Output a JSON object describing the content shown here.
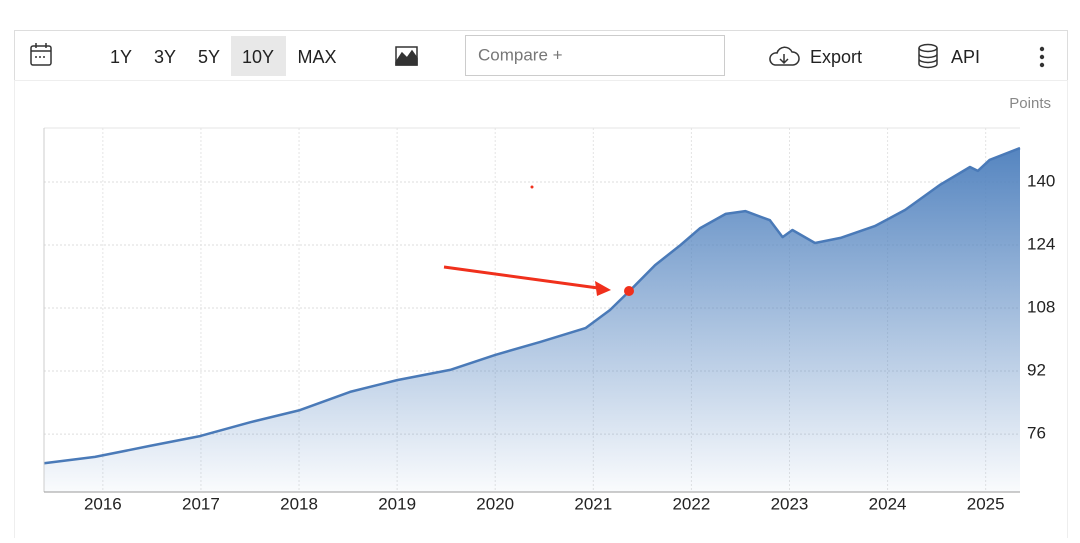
{
  "toolbar": {
    "ranges": [
      "1Y",
      "3Y",
      "5Y",
      "10Y",
      "MAX"
    ],
    "compare": "Compare +",
    "export": "Export",
    "api": "API"
  },
  "chart_data": {
    "type": "area",
    "unit": "Points",
    "color": "#4a7ab8",
    "x": [
      2015.4,
      2015.92,
      2016.48,
      2016.99,
      2017.5,
      2018.01,
      2018.52,
      2019.0,
      2019.54,
      2020.0,
      2020.46,
      2020.92,
      2021.17,
      2021.38,
      2021.63,
      2021.89,
      2022.09,
      2022.35,
      2022.55,
      2022.8,
      2022.93,
      2023.03,
      2023.26,
      2023.52,
      2023.87,
      2024.18,
      2024.53,
      2024.84,
      2024.92,
      2025.04,
      2025.35
    ],
    "values": [
      68.6,
      70.2,
      73.0,
      75.5,
      79.0,
      82.1,
      86.7,
      89.7,
      92.3,
      96.1,
      99.4,
      102.9,
      107.5,
      112.6,
      118.9,
      124.0,
      128.3,
      131.9,
      132.6,
      130.3,
      126.0,
      127.8,
      124.5,
      125.8,
      128.8,
      132.9,
      139.2,
      143.8,
      142.8,
      145.6,
      148.6
    ],
    "xlim": [
      2015.4,
      2025.35
    ],
    "xticks": [
      2016,
      2017,
      2018,
      2019,
      2020,
      2021,
      2022,
      2023,
      2024,
      2025
    ],
    "ylim": [
      61.3,
      153.7
    ],
    "yticks": [
      76,
      92,
      108,
      124,
      140
    ],
    "grid": true
  }
}
